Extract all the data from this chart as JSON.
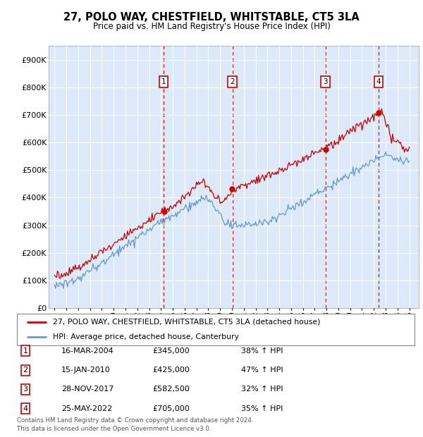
{
  "title": "27, POLO WAY, CHESTFIELD, WHITSTABLE, CT5 3LA",
  "subtitle": "Price paid vs. HM Land Registry's House Price Index (HPI)",
  "legend_label_red": "27, POLO WAY, CHESTFIELD, WHITSTABLE, CT5 3LA (detached house)",
  "legend_label_blue": "HPI: Average price, detached house, Canterbury",
  "footer_line1": "Contains HM Land Registry data © Crown copyright and database right 2024.",
  "footer_line2": "This data is licensed under the Open Government Licence v3.0.",
  "transactions": [
    {
      "num": 1,
      "date": "16-MAR-2004",
      "price": 345000,
      "pct": "38%",
      "year_x": 2004.21
    },
    {
      "num": 2,
      "date": "15-JAN-2010",
      "price": 425000,
      "pct": "47%",
      "year_x": 2010.04
    },
    {
      "num": 3,
      "date": "28-NOV-2017",
      "price": 582500,
      "pct": "32%",
      "year_x": 2017.91
    },
    {
      "num": 4,
      "date": "25-MAY-2022",
      "price": 705000,
      "pct": "35%",
      "year_x": 2022.4
    }
  ],
  "ylim": [
    0,
    950000
  ],
  "yticks": [
    0,
    100000,
    200000,
    300000,
    400000,
    500000,
    600000,
    700000,
    800000,
    900000
  ],
  "ytick_labels": [
    "£0",
    "£100K",
    "£200K",
    "£300K",
    "£400K",
    "£500K",
    "£600K",
    "£700K",
    "£800K",
    "£900K"
  ],
  "xlim_start": 1994.5,
  "xlim_end": 2025.8,
  "background_color": "#dce9f8",
  "grid_color": "#ffffff",
  "red_line_color": "#cc0000",
  "blue_line_color": "#6699cc",
  "vline_color": "#cc0000",
  "marker_box_color": "#cc0000"
}
